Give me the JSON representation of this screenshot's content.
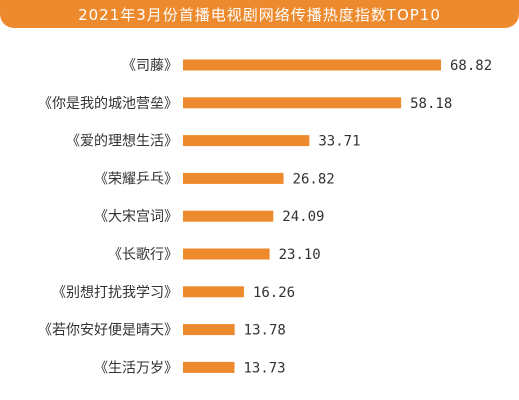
{
  "title": "2021年3月份首播电视剧网络传播热度指数TOP10",
  "colors": {
    "accent": "#ee8a2e",
    "bar": "#ee8a2e",
    "text": "#333333"
  },
  "chart_data": {
    "type": "bar",
    "orientation": "horizontal",
    "title": "2021年3月份首播电视剧网络传播热度指数TOP10",
    "categories": [
      "《司藤》",
      "《你是我的城池营垒》",
      "《爱的理想生活》",
      "《荣耀乒乓》",
      "《大宋宫词》",
      "《长歌行》",
      "《别想打扰我学习》",
      "《若你安好便是晴天》",
      "《生活万岁》"
    ],
    "values": [
      68.82,
      58.18,
      33.71,
      26.82,
      24.09,
      23.1,
      16.26,
      13.78,
      13.73
    ],
    "value_labels": [
      "68.82",
      "58.18",
      "33.71",
      "26.82",
      "24.09",
      "23.10",
      "16.26",
      "13.78",
      "13.73"
    ],
    "xlim": [
      0,
      68.82
    ],
    "grid": false,
    "legend": "none"
  }
}
